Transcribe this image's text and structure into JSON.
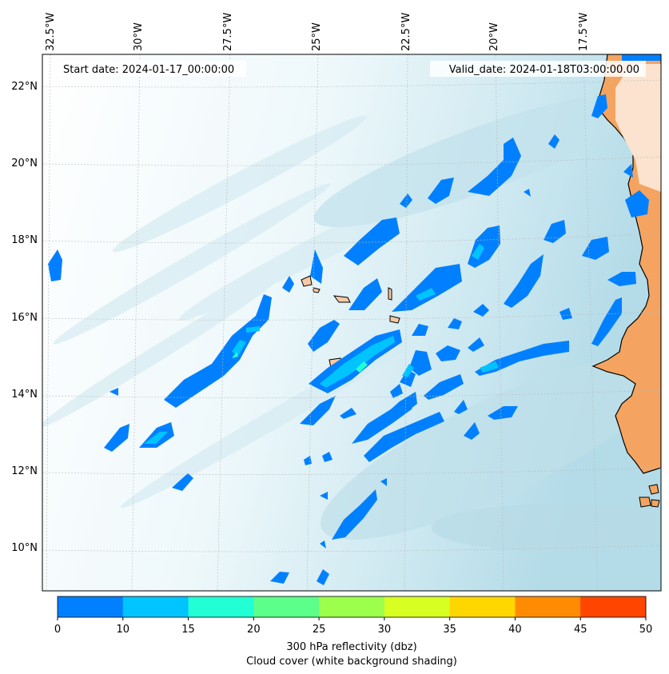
{
  "header": {
    "start_label": "Start date: 2024-01-17_00:00:00",
    "valid_label": "Valid_date: 2024-01-18T03:00:00.00"
  },
  "map": {
    "lon_ticks": [
      "32.5°W",
      "30°W",
      "27.5°W",
      "25°W",
      "22.5°W",
      "20°W",
      "17.5°W"
    ],
    "lat_ticks": [
      "22°N",
      "20°N",
      "18°N",
      "16°N",
      "14°N",
      "12°N",
      "10°N"
    ],
    "colors": {
      "ocean_light": "#ffffff",
      "cloud_shading": "#add8e6",
      "land": "#f4a460",
      "grid": "#bbbbbb"
    }
  },
  "colorbar": {
    "levels": [
      "0",
      "10",
      "15",
      "20",
      "25",
      "30",
      "35",
      "40",
      "45",
      "50"
    ],
    "colors": [
      "#0080ff",
      "#00c4ff",
      "#22ffd4",
      "#5cff8a",
      "#9cff4c",
      "#d8ff22",
      "#ffd700",
      "#ff8c00",
      "#ff4500"
    ],
    "label": "300 hPa reflectivity (dbz)",
    "sublabel": "Cloud cover (white background shading)"
  }
}
